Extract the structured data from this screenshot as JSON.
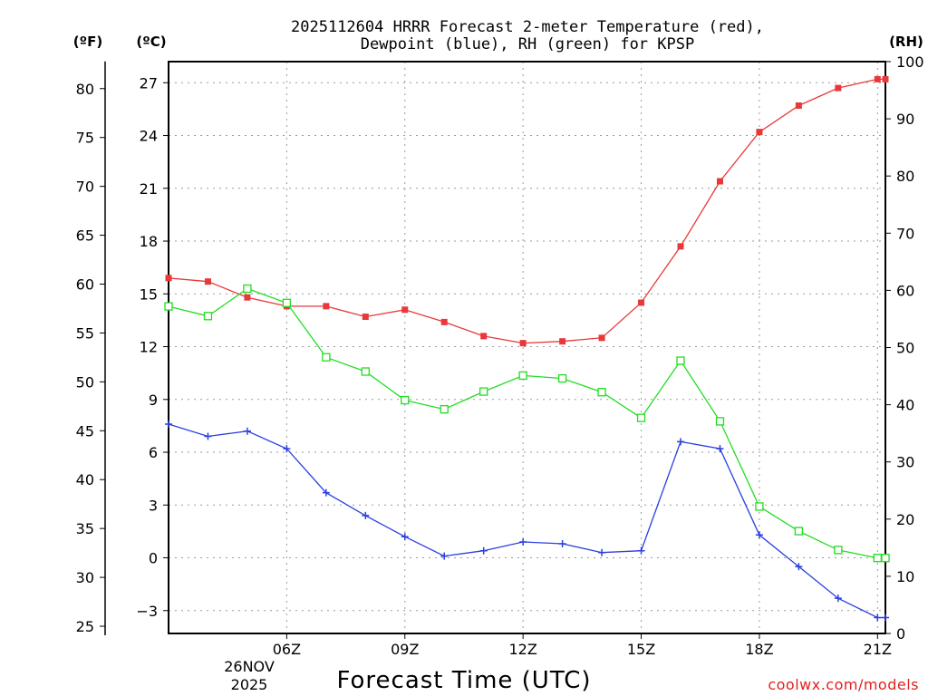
{
  "chart_data": {
    "type": "line",
    "title_line1": "2025112604 HRRR Forecast 2-meter Temperature (red),",
    "title_line2": "Dewpoint (blue), RH (green) for KPSP",
    "left_outer_unit": "(ºF)",
    "left_inner_unit": "(ºC)",
    "right_unit": "(RH)",
    "xlabel": "Forecast Time (UTC)",
    "credit": "coolwx.com/models",
    "date_label_line1": "26NOV",
    "date_label_line2": "2025",
    "x_range": [
      3,
      21.2
    ],
    "x_ticks": [
      {
        "x": 6,
        "label": "06Z"
      },
      {
        "x": 9,
        "label": "09Z"
      },
      {
        "x": 12,
        "label": "12Z"
      },
      {
        "x": 15,
        "label": "15Z"
      },
      {
        "x": 18,
        "label": "18Z"
      },
      {
        "x": 21,
        "label": "21Z"
      }
    ],
    "celsius_range": [
      -4.3,
      28.2
    ],
    "celsius_ticks": [
      -3,
      0,
      3,
      6,
      9,
      12,
      15,
      18,
      21,
      24,
      27
    ],
    "fahrenheit_ticks": [
      25,
      30,
      35,
      40,
      45,
      50,
      55,
      60,
      65,
      70,
      75,
      80
    ],
    "rh_range": [
      0,
      100
    ],
    "rh_ticks": [
      0,
      10,
      20,
      30,
      40,
      50,
      60,
      70,
      80,
      90,
      100
    ],
    "hours": [
      3,
      4,
      5,
      6,
      7,
      8,
      9,
      10,
      11,
      12,
      13,
      14,
      15,
      16,
      17,
      18,
      19,
      20,
      21,
      21.2
    ],
    "series": [
      {
        "name": "Temperature",
        "unit": "C",
        "color": "#e8383a",
        "marker": "filled-square",
        "values": [
          15.9,
          15.7,
          14.8,
          14.3,
          14.3,
          13.7,
          14.1,
          13.4,
          12.6,
          12.2,
          12.3,
          12.5,
          14.5,
          17.7,
          21.4,
          24.2,
          25.7,
          26.7,
          27.2,
          27.2
        ]
      },
      {
        "name": "Dewpoint",
        "unit": "C",
        "color": "#2b3fe0",
        "marker": "plus",
        "values": [
          7.6,
          6.9,
          7.2,
          6.2,
          3.7,
          2.4,
          1.2,
          0.1,
          0.4,
          0.9,
          0.8,
          0.3,
          0.4,
          6.6,
          6.2,
          1.3,
          -0.5,
          -2.3,
          -3.4,
          -3.4
        ]
      },
      {
        "name": "RH",
        "unit": "%",
        "color": "#22dd22",
        "marker": "open-square",
        "values": [
          57.2,
          55.5,
          60.3,
          57.8,
          48.3,
          45.8,
          40.8,
          39.2,
          42.3,
          45.1,
          44.6,
          42.2,
          37.7,
          47.7,
          37.1,
          22.2,
          17.9,
          14.6,
          13.2,
          13.2
        ]
      }
    ]
  }
}
